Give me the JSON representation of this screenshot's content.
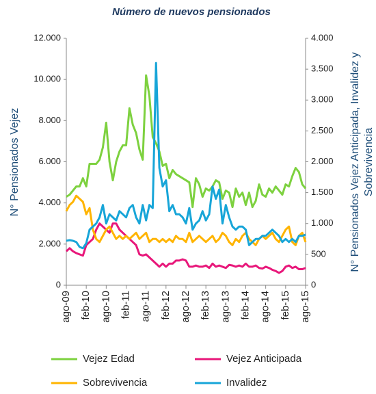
{
  "chart_data": {
    "type": "line",
    "title": "Número de nuevos pensionados",
    "y_label": "N° Pensionados Vejez",
    "y2_label": [
      "N° Pensionados Vejez Anticipada, Invalidez y",
      "Sobrevivencia"
    ],
    "categories": [
      "ago-09",
      null,
      null,
      null,
      null,
      null,
      "feb-10",
      null,
      null,
      null,
      null,
      null,
      "ago-10",
      null,
      null,
      null,
      null,
      null,
      "feb-11",
      null,
      null,
      null,
      null,
      null,
      "ago-11",
      null,
      null,
      null,
      null,
      null,
      "feb-12",
      null,
      null,
      null,
      null,
      null,
      "ago-12",
      null,
      null,
      null,
      null,
      null,
      "feb-13",
      null,
      null,
      null,
      null,
      null,
      "ago-13",
      null,
      null,
      null,
      null,
      null,
      "feb-14",
      null,
      null,
      null,
      null,
      null,
      "ago-14",
      null,
      null,
      null,
      null,
      null,
      "feb-15",
      null,
      null,
      null,
      null,
      null,
      "ago-15"
    ],
    "ylim": [
      0,
      12000
    ],
    "yticks": [
      0,
      {
        "value": 2000,
        "label": "2.000"
      },
      {
        "value": 4000,
        "label": "4.000"
      },
      {
        "value": 6000,
        "label": "6.000"
      },
      {
        "value": 8000,
        "label": "8.000"
      },
      {
        "value": 10000,
        "label": "10.000"
      },
      {
        "value": 12000,
        "label": "12.000"
      }
    ],
    "y2lim": [
      0,
      4000
    ],
    "y2ticks": [
      0,
      500,
      {
        "value": 1000,
        "label": "1.000"
      },
      {
        "value": 1500,
        "label": "1.500"
      },
      {
        "value": 2000,
        "label": "2.000"
      },
      {
        "value": 2500,
        "label": "2.500"
      },
      {
        "value": 3000,
        "label": "3.000"
      },
      {
        "value": 3500,
        "label": "3.500"
      },
      {
        "value": 4000,
        "label": "4.000"
      }
    ],
    "series": [
      {
        "name": "Vejez Edad",
        "color": "#7dd13f",
        "axis": "y",
        "values": [
          4300,
          4400,
          4600,
          4800,
          4800,
          5200,
          4800,
          5900,
          5900,
          5900,
          6100,
          6700,
          7900,
          6000,
          5100,
          6000,
          6500,
          6800,
          6800,
          8600,
          7800,
          7400,
          6600,
          6100,
          10200,
          9200,
          7200,
          6900,
          6500,
          5800,
          5900,
          5200,
          5600,
          5400,
          5300,
          5200,
          5100,
          5000,
          3800,
          5200,
          4900,
          4300,
          4700,
          4600,
          4800,
          5100,
          5000,
          4200,
          4600,
          4500,
          3800,
          4700,
          4300,
          4500,
          3900,
          4500,
          3800,
          4100,
          4900,
          4400,
          4300,
          4700,
          4500,
          4800,
          4600,
          4400,
          4900,
          4800,
          5300,
          5700,
          5500,
          4900,
          4700
        ]
      },
      {
        "name": "Vejez Anticipada",
        "color": "#e8177a",
        "axis": "y2",
        "values": [
          550,
          600,
          550,
          520,
          500,
          480,
          650,
          700,
          750,
          900,
          1000,
          950,
          900,
          850,
          1000,
          1000,
          900,
          850,
          800,
          750,
          700,
          650,
          500,
          480,
          500,
          450,
          400,
          350,
          300,
          350,
          300,
          350,
          350,
          400,
          400,
          420,
          400,
          300,
          300,
          320,
          300,
          300,
          320,
          280,
          350,
          300,
          320,
          300,
          280,
          330,
          320,
          300,
          320,
          300,
          350,
          300,
          300,
          320,
          280,
          270,
          300,
          280,
          250,
          230,
          200,
          230,
          300,
          320,
          280,
          300,
          260,
          260,
          280
        ]
      },
      {
        "name": "Sobrevivencia",
        "color": "#ffb400",
        "axis": "y2",
        "values": [
          1200,
          1300,
          1350,
          1450,
          1400,
          1350,
          1150,
          1250,
          900,
          750,
          700,
          800,
          900,
          950,
          850,
          750,
          800,
          750,
          800,
          750,
          800,
          850,
          750,
          800,
          850,
          700,
          750,
          750,
          700,
          750,
          700,
          750,
          700,
          800,
          750,
          750,
          700,
          850,
          700,
          750,
          800,
          750,
          700,
          750,
          800,
          700,
          750,
          850,
          800,
          700,
          650,
          750,
          700,
          800,
          850,
          750,
          700,
          650,
          750,
          800,
          750,
          800,
          850,
          750,
          700,
          800,
          900,
          950,
          700,
          650,
          800,
          850,
          700
        ]
      },
      {
        "name": "Invalidez",
        "color": "#17a5d8",
        "axis": "y2",
        "values": [
          720,
          730,
          720,
          700,
          620,
          600,
          680,
          900,
          950,
          1000,
          1100,
          1300,
          1000,
          1150,
          1100,
          1050,
          1200,
          1150,
          1100,
          1250,
          1300,
          1100,
          1000,
          1300,
          1050,
          1300,
          1250,
          3600,
          1900,
          1600,
          1700,
          1200,
          1300,
          1150,
          1150,
          1100,
          1000,
          1250,
          900,
          1000,
          1050,
          1200,
          1050,
          1150,
          1600,
          1400,
          1550,
          1000,
          1300,
          1100,
          950,
          900,
          950,
          950,
          900,
          650,
          700,
          750,
          750,
          800,
          800,
          850,
          900,
          850,
          800,
          700,
          750,
          700,
          750,
          700,
          800,
          800,
          820
        ]
      }
    ]
  }
}
